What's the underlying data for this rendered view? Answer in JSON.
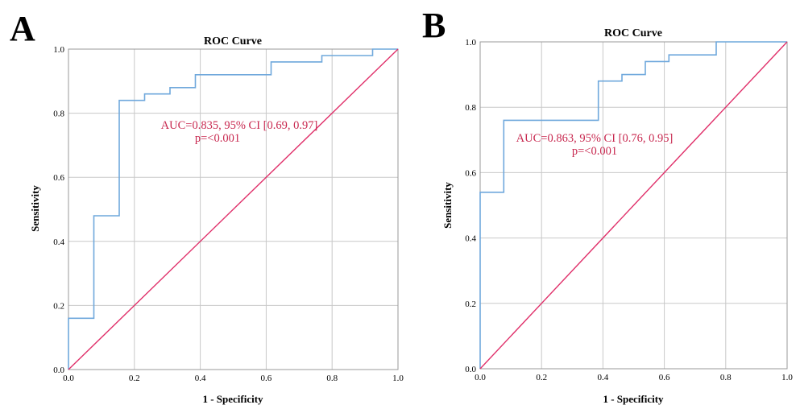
{
  "chart_data": [
    {
      "panel": "A",
      "type": "line",
      "title": "ROC Curve",
      "xlabel": "1 - Specificity",
      "ylabel": "Sensitivity",
      "xlim": [
        0,
        1
      ],
      "ylim": [
        0,
        1
      ],
      "x_ticks": [
        "0.0",
        "0.2",
        "0.4",
        "0.6",
        "0.8",
        "1.0"
      ],
      "y_ticks": [
        "0.0",
        "0.2",
        "0.4",
        "0.6",
        "0.8",
        "1.0"
      ],
      "grid": true,
      "series": [
        {
          "color": "#6fa8dc",
          "x": [
            0,
            0,
            0.077,
            0.077,
            0.154,
            0.154,
            0.231,
            0.231,
            0.308,
            0.308,
            0.385,
            0.385,
            0.615,
            0.615,
            0.769,
            0.769,
            0.923,
            0.923,
            1.0
          ],
          "y": [
            0,
            0.16,
            0.16,
            0.48,
            0.48,
            0.84,
            0.84,
            0.86,
            0.86,
            0.88,
            0.88,
            0.92,
            0.92,
            0.96,
            0.96,
            0.98,
            0.98,
            1.0,
            1.0
          ]
        },
        {
          "color": "#e0306a",
          "x": [
            0,
            1
          ],
          "y": [
            0,
            1
          ]
        }
      ],
      "annotations": [
        "AUC=0.835, 95% CI [0.69, 0.97]",
        "p=<0.001"
      ],
      "annotation_color": "#c8284f"
    },
    {
      "panel": "B",
      "type": "line",
      "title": "ROC Curve",
      "xlabel": "1 - Specificity",
      "ylabel": "Sensitivity",
      "xlim": [
        0,
        1
      ],
      "ylim": [
        0,
        1
      ],
      "x_ticks": [
        "0.0",
        "0.2",
        "0.4",
        "0.6",
        "0.8",
        "1.0"
      ],
      "y_ticks": [
        "0.0",
        "0.2",
        "0.4",
        "0.6",
        "0.8",
        "1.0"
      ],
      "grid": true,
      "series": [
        {
          "color": "#6fa8dc",
          "x": [
            0,
            0,
            0.077,
            0.077,
            0.385,
            0.385,
            0.462,
            0.462,
            0.538,
            0.538,
            0.615,
            0.615,
            0.769,
            0.769,
            1.0
          ],
          "y": [
            0,
            0.54,
            0.54,
            0.76,
            0.76,
            0.88,
            0.88,
            0.9,
            0.9,
            0.94,
            0.94,
            0.96,
            0.96,
            1.0,
            1.0
          ]
        },
        {
          "color": "#e0306a",
          "x": [
            0,
            1
          ],
          "y": [
            0,
            1
          ]
        }
      ],
      "annotations": [
        "AUC=0.863, 95% CI [0.76, 0.95]",
        "p=<0.001"
      ],
      "annotation_color": "#c8284f"
    }
  ]
}
